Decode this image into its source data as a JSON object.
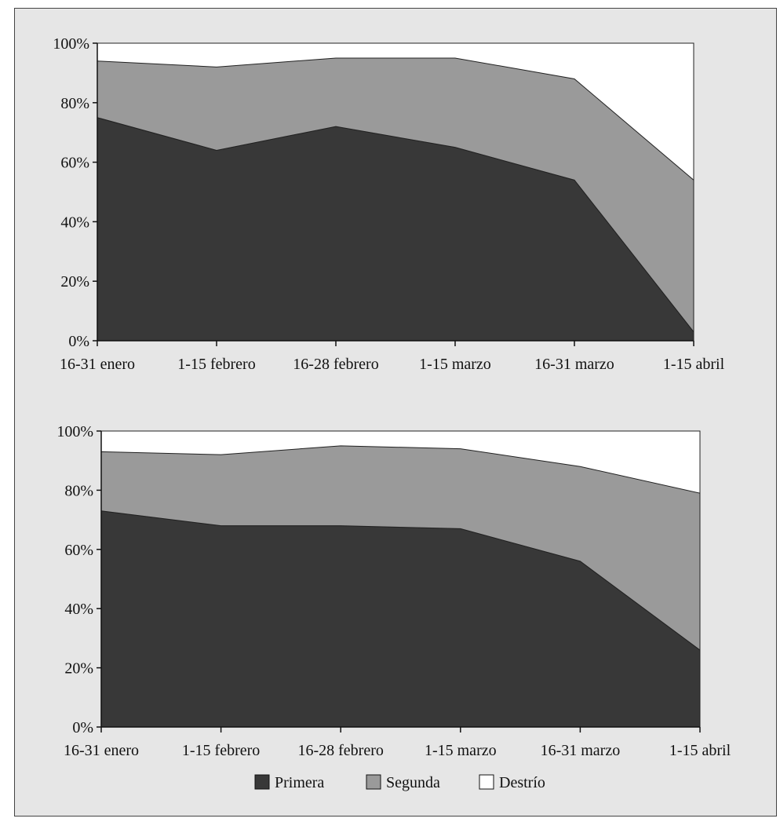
{
  "colors": {
    "primera": "#383838",
    "segunda": "#9a9a9a",
    "destrio": "#ffffff",
    "panel": "#e6e6e6",
    "axis": "#111111"
  },
  "chart_data": [
    {
      "type": "area",
      "stacked": true,
      "categories": [
        "16-31 enero",
        "1-15 febrero",
        "16-28 febrero",
        "1-15 marzo",
        "16-31 marzo",
        "1-15 abril"
      ],
      "yticks": [
        "0%",
        "20%",
        "40%",
        "60%",
        "80%",
        "100%"
      ],
      "ylim": [
        0,
        100
      ],
      "series": [
        {
          "name": "Primera",
          "values": [
            75,
            64,
            72,
            65,
            54,
            3
          ]
        },
        {
          "name": "Segunda",
          "values": [
            19,
            28,
            23,
            30,
            34,
            51
          ]
        },
        {
          "name": "Destrío",
          "values": [
            6,
            8,
            5,
            5,
            12,
            46
          ]
        }
      ]
    },
    {
      "type": "area",
      "stacked": true,
      "categories": [
        "16-31 enero",
        "1-15 febrero",
        "16-28 febrero",
        "1-15 marzo",
        "16-31 marzo",
        "1-15 abril"
      ],
      "yticks": [
        "0%",
        "20%",
        "40%",
        "60%",
        "80%",
        "100%"
      ],
      "ylim": [
        0,
        100
      ],
      "series": [
        {
          "name": "Primera",
          "values": [
            73,
            68,
            68,
            67,
            56,
            26
          ]
        },
        {
          "name": "Segunda",
          "values": [
            20,
            24,
            27,
            27,
            32,
            53
          ]
        },
        {
          "name": "Destrío",
          "values": [
            7,
            8,
            5,
            6,
            12,
            21
          ]
        }
      ]
    }
  ],
  "legend": {
    "placement": "bottom-center",
    "items": [
      {
        "label": "Primera",
        "color": "#383838"
      },
      {
        "label": "Segunda",
        "color": "#9a9a9a"
      },
      {
        "label": "Destrío",
        "color": "#ffffff"
      }
    ]
  }
}
